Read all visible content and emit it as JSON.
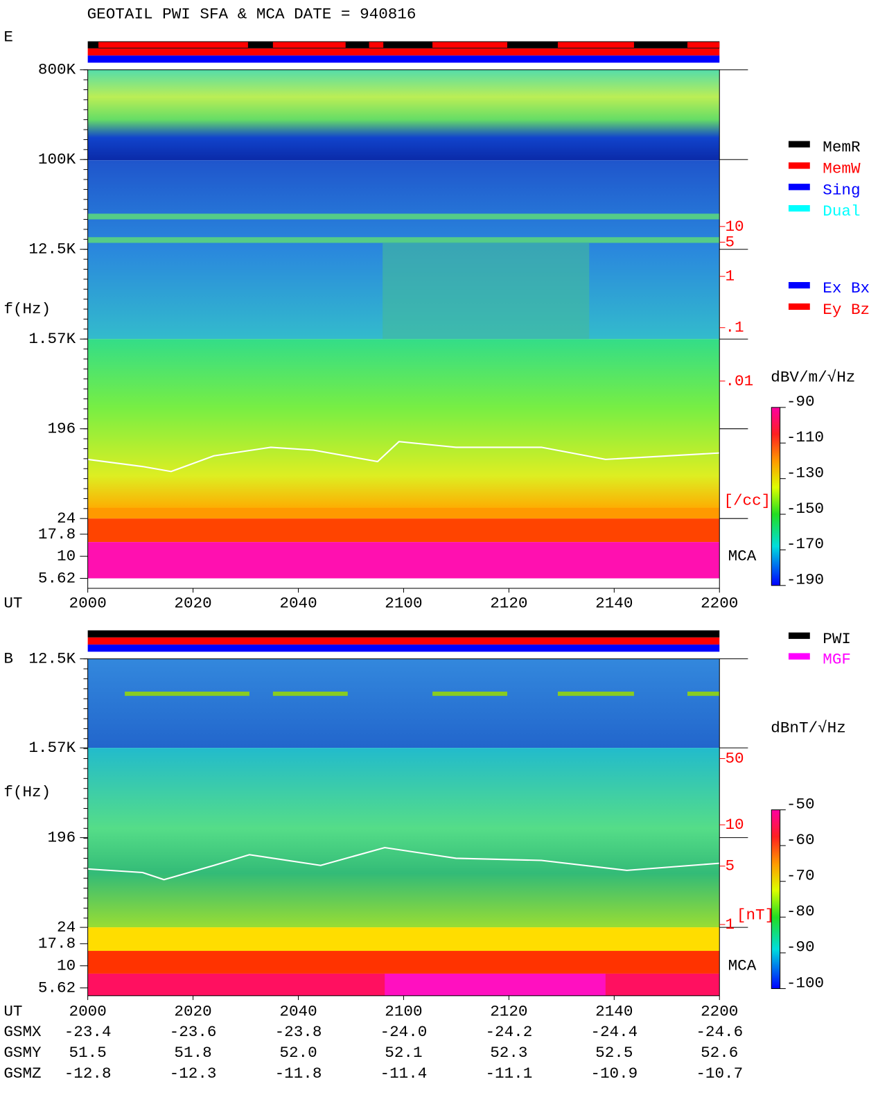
{
  "title": "GEOTAIL  PWI SFA & MCA   DATE = 940816",
  "panels": [
    {
      "label": "E",
      "y_axis_label": "f(Hz)",
      "y_ticks": [
        "800K",
        "100K",
        "12.5K",
        "1.57K",
        "196",
        "24",
        "17.8",
        "10",
        "5.62"
      ],
      "x_axis_label": "UT",
      "x_ticks": [
        "2000",
        "2020",
        "2040",
        "2100",
        "2120",
        "2140",
        "2200"
      ],
      "mca_label": "MCA",
      "right_scale": [
        "10",
        "5",
        "1",
        ".1",
        ".01"
      ],
      "right_unit": "[/cc]",
      "colorbar": {
        "unit": "dBV/m/√Hz",
        "ticks": [
          "-90",
          "-110",
          "-130",
          "-150",
          "-170",
          "-190"
        ]
      },
      "legend": [
        {
          "name": "MemR",
          "color": "#000000"
        },
        {
          "name": "MemW",
          "color": "#ff0000"
        },
        {
          "name": "Sing",
          "color": "#0000ff"
        },
        {
          "name": "Dual",
          "color": "#00ffff"
        },
        {
          "name": "Ex Bx",
          "color": "#0000ff"
        },
        {
          "name": "Ey Bz",
          "color": "#ff0000"
        }
      ]
    },
    {
      "label": "B",
      "y_axis_label": "f(Hz)",
      "y_ticks": [
        "12.5K",
        "1.57K",
        "196",
        "24",
        "17.8",
        "10",
        "5.62"
      ],
      "x_axis_label": "UT",
      "x_ticks": [
        "2000",
        "2020",
        "2040",
        "2100",
        "2120",
        "2140",
        "2200"
      ],
      "mca_label": "MCA",
      "right_scale": [
        "50",
        "10",
        "5",
        "1"
      ],
      "right_unit": "[nT]",
      "colorbar": {
        "unit": "dBnT/√Hz",
        "ticks": [
          "-50",
          "-60",
          "-70",
          "-80",
          "-90",
          "-100"
        ]
      },
      "legend": [
        {
          "name": "PWI",
          "color": "#000000"
        },
        {
          "name": "MGF",
          "color": "#ff00ff"
        }
      ]
    }
  ],
  "orbit": [
    {
      "label": "GSMX",
      "values": [
        "-23.4",
        "-23.6",
        "-23.8",
        "-24.0",
        "-24.2",
        "-24.4",
        "-24.6"
      ]
    },
    {
      "label": "GSMY",
      "values": [
        "51.5",
        "51.8",
        "52.0",
        "52.1",
        "52.3",
        "52.5",
        "52.6"
      ]
    },
    {
      "label": "GSMZ",
      "values": [
        "-12.8",
        "-12.3",
        "-11.8",
        "-11.4",
        "-11.1",
        "-10.9",
        "-10.7"
      ]
    }
  ]
}
